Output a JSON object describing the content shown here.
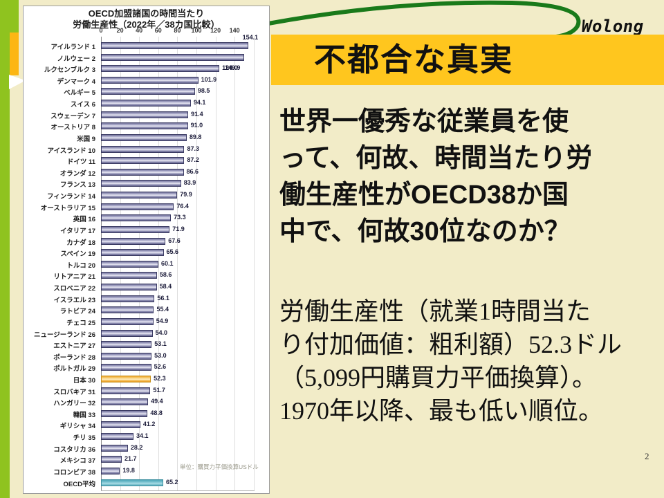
{
  "slide": {
    "logo": "Wolong",
    "page_number": "2",
    "colors": {
      "background": "#F2ECC8",
      "title_bar": "#FFC61E",
      "left_stripe": "#8FC31F",
      "left_gold": "#FCB614",
      "swoosh_green": "#1A7A1A",
      "bar_default": "#9A9ABE",
      "bar_japan": "#F3B94E",
      "bar_oecd": "#57ACBC"
    }
  },
  "header": {
    "title": "不都合な真実"
  },
  "body": {
    "para1": {
      "lines": [
        "世界一優秀な従業員を使",
        "って、何故、時間当たり労",
        "働生産性がOECD38か国",
        "中で、何故30位なのか？"
      ]
    },
    "para2": {
      "lines": [
        "労働生産性（就業1時間当た",
        "り付加価値：粗利額）52.3ドル",
        "（5,099円購買力平価換算）。",
        "1970年以降、最も低い順位。"
      ]
    }
  },
  "chart_data": {
    "type": "bar",
    "orientation": "horizontal",
    "title_line1": "OECD加盟諸国の時間当たり",
    "title_line2": "労働生産性（2022年／38カ国比較）",
    "unit_note": "単位：購買力平価換算USドル",
    "xlabel": "",
    "ylabel": "",
    "x_ticks": [
      0,
      20,
      40,
      60,
      80,
      100,
      120,
      140
    ],
    "xlim": [
      0,
      160
    ],
    "grid": true,
    "categories": [
      "アイルランド 1",
      "ノルウェー 2",
      "ルクセンブルク 3",
      "デンマーク 4",
      "ベルギー 5",
      "スイス 6",
      "スウェーデン 7",
      "オーストリア 8",
      "米国 9",
      "アイスランド 10",
      "ドイツ 11",
      "オランダ 12",
      "フランス 13",
      "フィンランド 14",
      "オーストラリア 15",
      "英国 16",
      "イタリア 17",
      "カナダ 18",
      "スペイン 19",
      "トルコ 20",
      "リトアニア 21",
      "スロベニア 22",
      "イスラエル 23",
      "ラトビア 24",
      "チェコ 25",
      "ニュージーランド 26",
      "エストニア 27",
      "ポーランド 28",
      "ポルトガル 29",
      "日本 30",
      "スロバキア 31",
      "ハンガリー 32",
      "韓国 33",
      "ギリシャ 34",
      "チリ 35",
      "コスタリカ 36",
      "メキシコ 37",
      "コロンビア 38",
      "OECD平均"
    ],
    "values": [
      154.1,
      149.9,
      124.0,
      101.9,
      98.5,
      94.1,
      91.4,
      91.0,
      89.8,
      87.3,
      87.2,
      86.6,
      83.9,
      79.9,
      76.4,
      73.3,
      71.9,
      67.6,
      65.6,
      60.1,
      58.6,
      58.4,
      56.1,
      55.4,
      54.9,
      54.0,
      53.1,
      53.0,
      52.6,
      52.3,
      51.7,
      49.4,
      48.8,
      41.2,
      34.1,
      28.2,
      21.7,
      19.8,
      65.2
    ],
    "highlight": {
      "japan_index": 29,
      "oecd_index": 38
    }
  }
}
